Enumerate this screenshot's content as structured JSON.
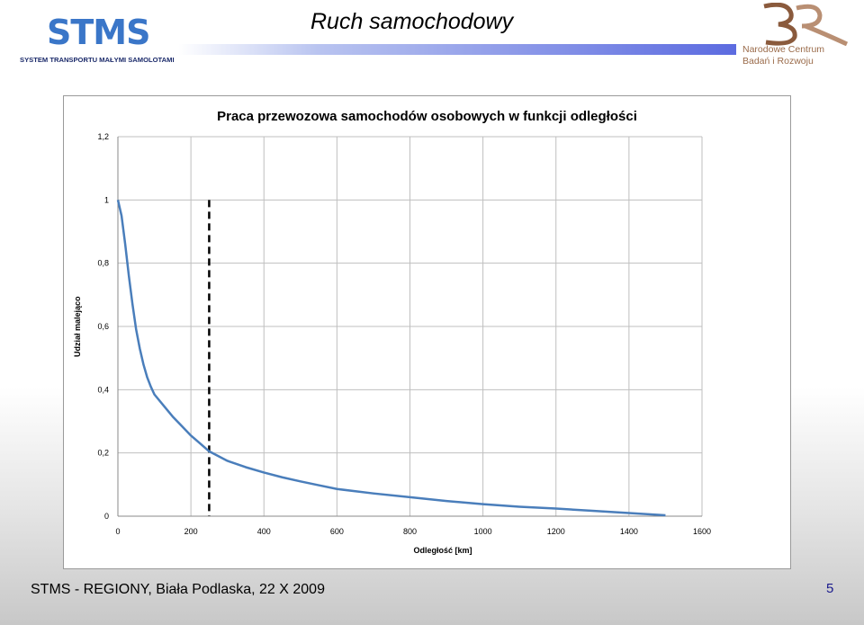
{
  "header": {
    "logo_left_text": "STMS",
    "logo_left_subtitle": "SYSTEM TRANSPORTU MAŁYMI SAMOLOTAMI",
    "slide_title": "Ruch samochodowy",
    "logo_right_mark": "BR",
    "logo_right_line1": "Narodowe Centrum",
    "logo_right_line2": "Badań i Rozwoju"
  },
  "footer": {
    "text": "STMS - REGIONY, Biała Podlaska, 22 X 2009",
    "page_number": "5"
  },
  "colors": {
    "series": "#4a7ebb",
    "grid": "#bfbfbf",
    "marker_line": "#000000",
    "title_bar_end": "#5c6be0"
  },
  "chart_data": {
    "type": "line",
    "title": "Praca przewozowa samochodów osobowych w funkcji odległości",
    "xlabel": "Odległość [km]",
    "ylabel": "Udział malejąco",
    "xlim": [
      0,
      1600
    ],
    "ylim": [
      0,
      1.2
    ],
    "x_ticks": [
      0,
      200,
      400,
      600,
      800,
      1000,
      1200,
      1400,
      1600
    ],
    "x_tick_labels": [
      "0",
      "200",
      "400",
      "600",
      "800",
      "1000",
      "1200",
      "1400",
      "1600"
    ],
    "y_ticks": [
      0,
      0.2,
      0.4,
      0.6,
      0.8,
      1,
      1.2
    ],
    "y_tick_labels": [
      "0",
      "0,2",
      "0,4",
      "0,6",
      "0,8",
      "1",
      "1,2"
    ],
    "grid": true,
    "legend": "none",
    "series": [
      {
        "x": [
          0,
          10,
          20,
          30,
          40,
          50,
          60,
          70,
          80,
          90,
          100,
          125,
          150,
          175,
          200,
          225,
          250,
          300,
          350,
          400,
          450,
          500,
          550,
          600,
          700,
          800,
          900,
          1000,
          1100,
          1200,
          1300,
          1400,
          1500
        ],
        "values": [
          1.0,
          0.95,
          0.86,
          0.76,
          0.67,
          0.59,
          0.53,
          0.48,
          0.44,
          0.41,
          0.385,
          0.35,
          0.315,
          0.285,
          0.255,
          0.23,
          0.205,
          0.175,
          0.155,
          0.138,
          0.123,
          0.11,
          0.098,
          0.086,
          0.072,
          0.06,
          0.048,
          0.038,
          0.03,
          0.024,
          0.017,
          0.01,
          0.003
        ]
      }
    ],
    "vertical_marker_x": 250
  }
}
